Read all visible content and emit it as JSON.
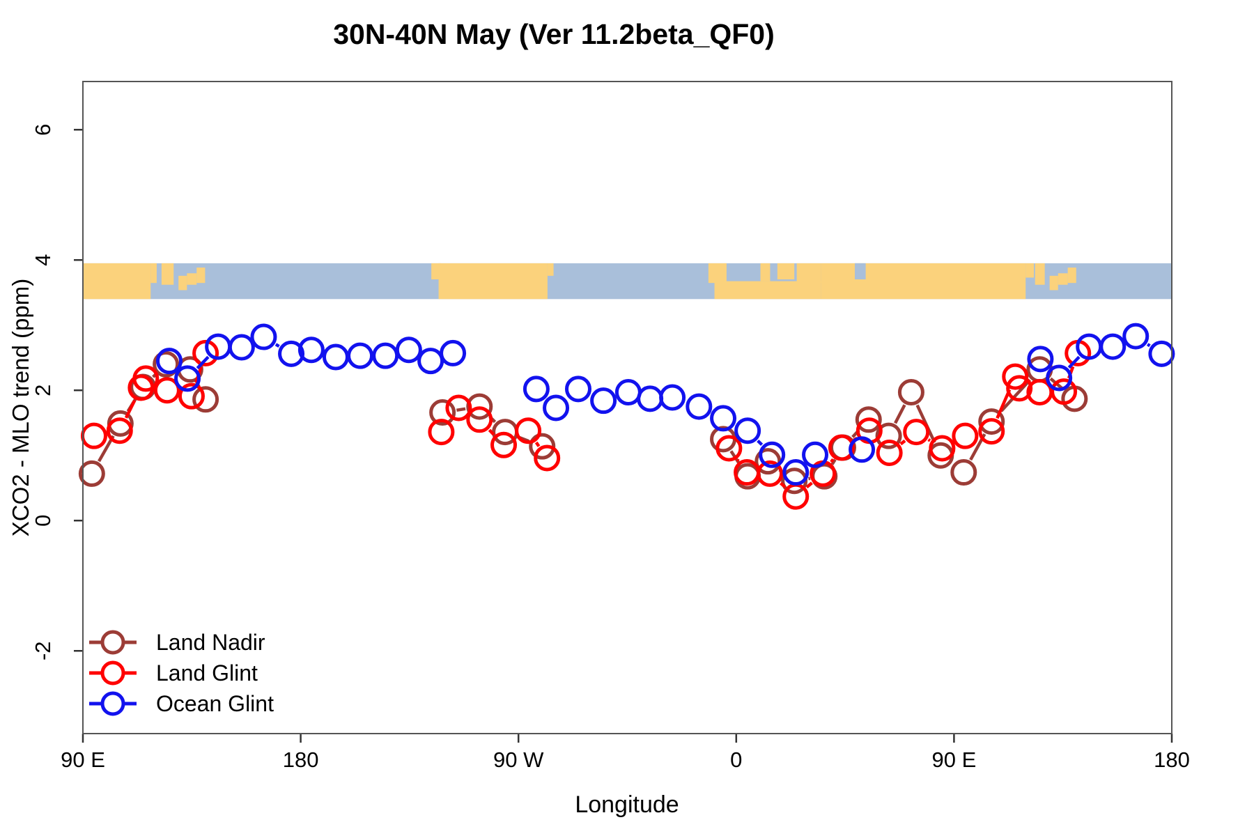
{
  "chart_data": {
    "type": "line",
    "title": "30N-40N May (Ver 11.2beta_QF0)",
    "xlabel": "Longitude",
    "ylabel": "XCO2 - MLO trend (ppm)",
    "xlim": [
      90,
      540
    ],
    "ylim": [
      -3.27,
      6.74
    ],
    "grid": false,
    "x_ticks": [
      {
        "value": 90,
        "label": "90 E"
      },
      {
        "value": 180,
        "label": "180"
      },
      {
        "value": 270,
        "label": "90 W"
      },
      {
        "value": 360,
        "label": "0"
      },
      {
        "value": 450,
        "label": "90 E"
      },
      {
        "value": 540,
        "label": "180"
      }
    ],
    "y_ticks": [
      {
        "value": -2,
        "label": "-2"
      },
      {
        "value": 0,
        "label": "0"
      },
      {
        "value": 2,
        "label": "2"
      },
      {
        "value": 4,
        "label": "4"
      },
      {
        "value": 6,
        "label": "6"
      }
    ],
    "map_band": {
      "y_from": 3.4,
      "y_to": 3.95,
      "ocean_color": "#A9BFDA",
      "land_color": "#FBD27C",
      "land_patches": [
        {
          "lon0": 90,
          "lon1": 118,
          "t": 0,
          "b": 1
        },
        {
          "lon0": 118,
          "lon1": 120.5,
          "t": 0,
          "b": 0.55
        },
        {
          "lon0": 122.5,
          "lon1": 127.5,
          "t": 0,
          "b": 0.6
        },
        {
          "lon0": 129.5,
          "lon1": 133,
          "t": 0.35,
          "b": 0.75
        },
        {
          "lon0": 133,
          "lon1": 137,
          "t": 0.28,
          "b": 0.6
        },
        {
          "lon0": 137,
          "lon1": 140.5,
          "t": 0.12,
          "b": 0.55
        },
        {
          "lon0": 234,
          "lon1": 238,
          "t": 0,
          "b": 0.45
        },
        {
          "lon0": 237,
          "lon1": 282,
          "t": 0,
          "b": 1
        },
        {
          "lon0": 282,
          "lon1": 284.5,
          "t": 0,
          "b": 0.35
        },
        {
          "lon0": 348.5,
          "lon1": 356,
          "t": 0,
          "b": 0.55
        },
        {
          "lon0": 351,
          "lon1": 395,
          "t": 0.5,
          "b": 1
        },
        {
          "lon0": 370,
          "lon1": 374,
          "t": 0,
          "b": 0.5
        },
        {
          "lon0": 377,
          "lon1": 384,
          "t": 0,
          "b": 0.45
        },
        {
          "lon0": 385,
          "lon1": 395,
          "t": 0,
          "b": 0.55
        },
        {
          "lon0": 395,
          "lon1": 479.6,
          "t": 0,
          "b": 1
        },
        {
          "lon0": 479.6,
          "lon1": 483,
          "t": 0,
          "b": 0.4
        },
        {
          "lon0": 483.5,
          "lon1": 487.5,
          "t": 0,
          "b": 0.6
        },
        {
          "lon0": 489.5,
          "lon1": 493,
          "t": 0.35,
          "b": 0.75
        },
        {
          "lon0": 493,
          "lon1": 497,
          "t": 0.28,
          "b": 0.6
        },
        {
          "lon0": 497,
          "lon1": 500.5,
          "t": 0.12,
          "b": 0.55
        }
      ],
      "lake_patches": [
        {
          "lon0": 409,
          "lon1": 413.5,
          "t": 0,
          "b": 0.45
        }
      ]
    },
    "series": [
      {
        "name": "Land Nadir",
        "color": "#9C3C36",
        "segments": [
          [
            [
              93.7,
              0.72
            ],
            [
              105.5,
              1.49
            ],
            [
              114.8,
              2.05
            ],
            [
              124.3,
              2.4
            ],
            [
              134.3,
              2.32
            ],
            [
              140.7,
              1.86
            ]
          ],
          [
            [
              238.6,
              1.66
            ],
            [
              253.9,
              1.75
            ],
            [
              264.5,
              1.36
            ],
            [
              279.8,
              1.14
            ]
          ],
          [
            [
              354.6,
              1.25
            ],
            [
              364.7,
              0.68
            ],
            [
              373.1,
              0.91
            ],
            [
              384.0,
              0.61
            ],
            [
              396.4,
              0.68
            ],
            [
              404.1,
              1.12
            ],
            [
              414.7,
              1.55
            ],
            [
              423.0,
              1.3
            ],
            [
              432.3,
              1.97
            ],
            [
              444.5,
              1.0
            ],
            [
              454.0,
              0.74
            ],
            [
              465.5,
              1.52
            ],
            [
              485.4,
              2.32
            ],
            [
              499.8,
              1.87
            ]
          ]
        ]
      },
      {
        "name": "Land Glint",
        "color": "#FF0000",
        "segments": [
          [
            [
              94.6,
              1.3
            ],
            [
              105.2,
              1.38
            ],
            [
              114.0,
              2.04
            ],
            [
              116.0,
              2.18
            ],
            [
              124.8,
              2.0
            ],
            [
              134.9,
              1.91
            ],
            [
              140.7,
              2.57
            ]
          ],
          [
            [
              238.1,
              1.36
            ],
            [
              245.3,
              1.73
            ],
            [
              253.9,
              1.55
            ],
            [
              263.9,
              1.16
            ],
            [
              274.0,
              1.38
            ],
            [
              281.8,
              0.96
            ]
          ],
          [
            [
              357.0,
              1.11
            ],
            [
              364.4,
              0.74
            ],
            [
              373.9,
              0.72
            ],
            [
              384.6,
              0.37
            ],
            [
              395.8,
              0.72
            ],
            [
              403.5,
              1.12
            ],
            [
              415.0,
              1.38
            ],
            [
              423.3,
              1.04
            ],
            [
              434.4,
              1.36
            ],
            [
              445.1,
              1.11
            ],
            [
              454.6,
              1.3
            ],
            [
              465.5,
              1.37
            ],
            [
              475.3,
              2.21
            ],
            [
              477.0,
              2.03
            ],
            [
              485.4,
              1.97
            ],
            [
              495.4,
              1.98
            ],
            [
              501.2,
              2.57
            ]
          ]
        ]
      },
      {
        "name": "Ocean Glint",
        "color": "#1212EE",
        "segments": [
          [
            [
              125.7,
              2.45
            ],
            [
              133.2,
              2.18
            ],
            [
              145.9,
              2.67
            ],
            [
              155.6,
              2.66
            ],
            [
              164.7,
              2.82
            ],
            [
              176.1,
              2.56
            ],
            [
              184.4,
              2.62
            ],
            [
              194.5,
              2.51
            ],
            [
              204.6,
              2.53
            ],
            [
              215.0,
              2.53
            ],
            [
              224.7,
              2.62
            ],
            [
              233.7,
              2.45
            ],
            [
              242.9,
              2.57
            ]
          ],
          [
            [
              277.4,
              2.02
            ],
            [
              285.5,
              1.73
            ],
            [
              294.7,
              2.02
            ],
            [
              305.1,
              1.84
            ],
            [
              315.4,
              1.97
            ],
            [
              324.4,
              1.87
            ],
            [
              333.6,
              1.89
            ],
            [
              344.6,
              1.75
            ],
            [
              354.6,
              1.57
            ],
            [
              364.7,
              1.38
            ],
            [
              374.8,
              1.01
            ],
            [
              384.6,
              0.74
            ],
            [
              392.6,
              1.01
            ]
          ],
          [
            [
              411.9,
              1.09
            ]
          ],
          [
            [
              485.7,
              2.48
            ],
            [
              493.4,
              2.19
            ],
            [
              505.8,
              2.67
            ],
            [
              515.6,
              2.67
            ],
            [
              525.1,
              2.83
            ],
            [
              535.8,
              2.56
            ]
          ]
        ]
      }
    ],
    "legend": {
      "items": [
        "Land Nadir",
        "Land Glint",
        "Ocean Glint"
      ]
    }
  }
}
